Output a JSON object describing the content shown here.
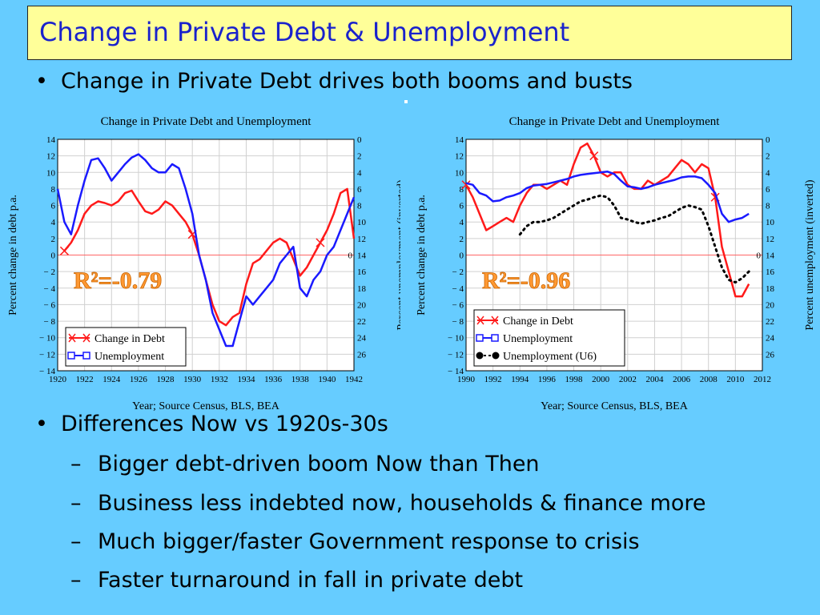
{
  "title": "Change in Private Debt & Unemployment",
  "bullet1": "Change in Private Debt drives both booms and busts",
  "bullet2": "Differences Now vs 1920s-30s",
  "subbullets": [
    "Bigger debt-driven boom Now than Then",
    "Business less indebted now, households & finance more",
    "Much bigger/faster Government response to crisis",
    "Faster turnaround in fall in private debt"
  ],
  "symbols": {
    "bullet": "•",
    "dash": "–"
  },
  "colors": {
    "debt": "#ff1a1a",
    "unemployment": "#1a1aff",
    "u6": "#000000",
    "r2": "#ff9933",
    "plot_bg": "#ffffff",
    "grid": "#d0d0d0"
  },
  "chart_data": [
    {
      "type": "line",
      "title": "Change in Private Debt and Unemployment",
      "xlabel": "Year; Source Census, BLS, BEA",
      "ylabel": "Percent change in debt p.a.",
      "y2label": "Percent unemployment (inverted)",
      "xlim": [
        1920,
        1942
      ],
      "ylim": [
        -14,
        14
      ],
      "y2lim": [
        0,
        28
      ],
      "y2_inverted": true,
      "x_ticks": [
        1920,
        1922,
        1924,
        1926,
        1928,
        1930,
        1932,
        1934,
        1936,
        1938,
        1940,
        1942
      ],
      "y_ticks": [
        14,
        12,
        10,
        8,
        6,
        4,
        2,
        0,
        -2,
        -4,
        -6,
        -8,
        -10,
        -12,
        -14
      ],
      "y_tick_labels": [
        "14",
        "12",
        "10",
        "8",
        "6",
        "4",
        "2",
        "0",
        "− 2",
        "− 4",
        "− 6",
        "− 8",
        "− 10",
        "− 12",
        "− 14"
      ],
      "y2_ticks": [
        0,
        2,
        4,
        6,
        8,
        10,
        12,
        14,
        16,
        18,
        20,
        22,
        24,
        26
      ],
      "y2_zero_label": "0",
      "annotation": "R²=-0.79",
      "legend_position": "bottom-left",
      "grid": true,
      "series": [
        {
          "name": "Change in Debt",
          "axis": "left",
          "color": "#ff1a1a",
          "style": "solid",
          "marker": "x",
          "x": [
            1920.5,
            1921,
            1921.5,
            1922,
            1922.5,
            1923,
            1923.5,
            1924,
            1924.5,
            1925,
            1925.5,
            1926,
            1926.5,
            1927,
            1927.5,
            1928,
            1928.5,
            1929,
            1929.5,
            1930,
            1930.5,
            1931,
            1931.5,
            1932,
            1932.5,
            1933,
            1933.5,
            1934,
            1934.5,
            1935,
            1935.5,
            1936,
            1936.5,
            1937,
            1937.5,
            1938,
            1938.5,
            1939,
            1939.5,
            1940,
            1940.5,
            1941,
            1941.5,
            1942
          ],
          "y": [
            0.5,
            1.5,
            3,
            5,
            6,
            6.5,
            6.3,
            6,
            6.5,
            7.5,
            7.8,
            6.5,
            5.3,
            5,
            5.5,
            6.5,
            6,
            5,
            4,
            2.5,
            0,
            -3,
            -6,
            -8,
            -8.5,
            -7.5,
            -7,
            -3.5,
            -1,
            -0.5,
            0.5,
            1.5,
            2,
            1.5,
            -0.5,
            -2.5,
            -1.5,
            0,
            1.5,
            3,
            5,
            7.5,
            8,
            2
          ]
        },
        {
          "name": "Unemployment",
          "axis": "right",
          "color": "#1a1aff",
          "style": "solid",
          "marker": "square",
          "x": [
            1920,
            1920.5,
            1921,
            1921.5,
            1922,
            1922.5,
            1923,
            1923.5,
            1924,
            1924.5,
            1925,
            1925.5,
            1926,
            1926.5,
            1927,
            1927.5,
            1928,
            1928.5,
            1929,
            1929.5,
            1930,
            1930.5,
            1931,
            1931.5,
            1932,
            1932.5,
            1933,
            1933.5,
            1934,
            1934.5,
            1935,
            1935.5,
            1936,
            1936.5,
            1937,
            1937.5,
            1938,
            1938.5,
            1939,
            1939.5,
            1940,
            1940.5,
            1941,
            1941.5,
            1942
          ],
          "y": [
            6,
            10,
            11.5,
            8,
            5,
            2.5,
            2.3,
            3.5,
            5,
            4,
            3,
            2.2,
            1.8,
            2.5,
            3.5,
            4,
            4,
            3,
            3.5,
            6,
            9,
            14,
            17,
            21,
            23,
            25,
            25,
            22,
            19,
            20,
            19,
            18,
            17,
            15,
            14,
            13,
            18,
            19,
            17,
            16,
            14,
            13,
            11,
            9,
            7
          ]
        }
      ]
    },
    {
      "type": "line",
      "title": "Change in Private Debt and Unemployment",
      "xlabel": "Year; Source Census, BLS, BEA",
      "ylabel": "Percent change in debt p.a.",
      "y2label": "Percent unemployment (inverted)",
      "xlim": [
        1990,
        2012
      ],
      "ylim": [
        -14,
        14
      ],
      "y2lim": [
        0,
        28
      ],
      "y2_inverted": true,
      "x_ticks": [
        1990,
        1992,
        1994,
        1996,
        1998,
        2000,
        2002,
        2004,
        2006,
        2008,
        2010,
        2012
      ],
      "y_ticks": [
        14,
        12,
        10,
        8,
        6,
        4,
        2,
        0,
        -2,
        -4,
        -6,
        -8,
        -10,
        -12,
        -14
      ],
      "y_tick_labels": [
        "14",
        "12",
        "10",
        "8",
        "6",
        "4",
        "2",
        "0",
        "− 2",
        "− 4",
        "− 6",
        "− 8",
        "− 10",
        "− 12",
        "− 14"
      ],
      "y2_ticks": [
        0,
        2,
        4,
        6,
        8,
        10,
        12,
        14,
        16,
        18,
        20,
        22,
        24,
        26
      ],
      "y2_zero_label": "0",
      "annotation": "R²=-0.96",
      "legend_position": "bottom-left",
      "grid": true,
      "series": [
        {
          "name": "Change in Debt",
          "axis": "left",
          "color": "#ff1a1a",
          "style": "solid",
          "marker": "x",
          "x": [
            1990,
            1990.5,
            1991,
            1991.5,
            1992,
            1992.5,
            1993,
            1993.5,
            1994,
            1994.5,
            1995,
            1995.5,
            1996,
            1996.5,
            1997,
            1997.5,
            1998,
            1998.5,
            1999,
            1999.5,
            2000,
            2000.5,
            2001,
            2001.5,
            2002,
            2002.5,
            2003,
            2003.5,
            2004,
            2004.5,
            2005,
            2005.5,
            2006,
            2006.5,
            2007,
            2007.5,
            2008,
            2008.5,
            2009,
            2009.5,
            2010,
            2010.5,
            2011
          ],
          "y": [
            8.5,
            7,
            5,
            3,
            3.5,
            4,
            4.5,
            4,
            6,
            7.5,
            8.5,
            8.5,
            8,
            8.5,
            9,
            8.5,
            11,
            13,
            13.5,
            12,
            10,
            9.5,
            10,
            10,
            8.5,
            8,
            8,
            9,
            8.5,
            9,
            9.5,
            10.5,
            11.5,
            11,
            10,
            11,
            10.5,
            7,
            1,
            -2,
            -5,
            -5,
            -3.5
          ]
        },
        {
          "name": "Unemployment",
          "axis": "right",
          "color": "#1a1aff",
          "style": "solid",
          "marker": "square",
          "x": [
            1990,
            1990.5,
            1991,
            1991.5,
            1992,
            1992.5,
            1993,
            1993.5,
            1994,
            1994.5,
            1995,
            1995.5,
            1996,
            1996.5,
            1997,
            1997.5,
            1998,
            1998.5,
            1999,
            1999.5,
            2000,
            2000.5,
            2001,
            2001.5,
            2002,
            2002.5,
            2003,
            2003.5,
            2004,
            2004.5,
            2005,
            2005.5,
            2006,
            2006.5,
            2007,
            2007.5,
            2008,
            2008.5,
            2009,
            2009.5,
            2010,
            2010.5,
            2011
          ],
          "y": [
            5.3,
            5.5,
            6.5,
            6.8,
            7.5,
            7.4,
            7,
            6.8,
            6.5,
            5.9,
            5.6,
            5.5,
            5.4,
            5.2,
            5,
            4.8,
            4.5,
            4.3,
            4.2,
            4.1,
            4,
            3.9,
            4.2,
            5,
            5.7,
            5.8,
            6,
            5.8,
            5.5,
            5.3,
            5.1,
            4.9,
            4.6,
            4.5,
            4.5,
            4.7,
            5.5,
            6.5,
            9,
            10,
            9.7,
            9.5,
            9
          ]
        },
        {
          "name": "Unemployment (U6)",
          "axis": "right",
          "color": "#000000",
          "style": "dotted",
          "marker": "circle",
          "x": [
            1994,
            1994.5,
            1995,
            1995.5,
            1996,
            1996.5,
            1997,
            1997.5,
            1998,
            1998.5,
            1999,
            1999.5,
            2000,
            2000.5,
            2001,
            2001.5,
            2002,
            2002.5,
            2003,
            2003.5,
            2004,
            2004.5,
            2005,
            2005.5,
            2006,
            2006.5,
            2007,
            2007.5,
            2008,
            2008.5,
            2009,
            2009.5,
            2010,
            2010.5,
            2011
          ],
          "y": [
            11.5,
            10.5,
            10,
            10,
            9.8,
            9.5,
            9,
            8.5,
            8,
            7.5,
            7.3,
            7,
            6.8,
            7,
            8,
            9.5,
            9.7,
            10,
            10.2,
            10,
            9.8,
            9.5,
            9.3,
            8.8,
            8.3,
            8,
            8.2,
            8.5,
            10.5,
            13,
            15.5,
            17,
            17.3,
            16.8,
            16
          ]
        }
      ]
    }
  ]
}
